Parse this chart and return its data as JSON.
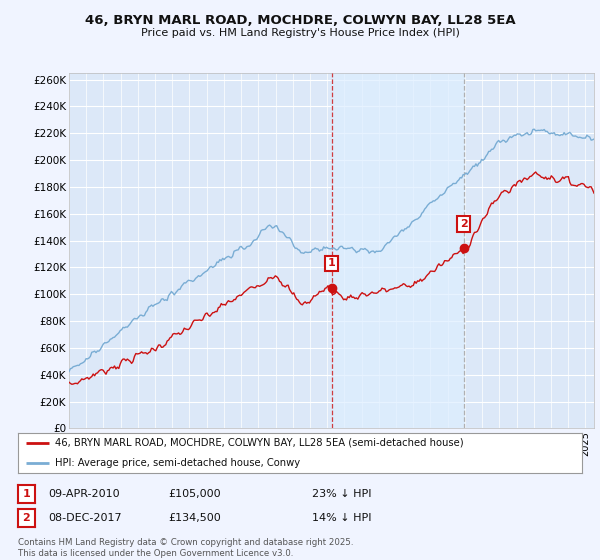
{
  "title": "46, BRYN MARL ROAD, MOCHDRE, COLWYN BAY, LL28 5EA",
  "subtitle": "Price paid vs. HM Land Registry's House Price Index (HPI)",
  "ylim": [
    0,
    265000
  ],
  "yticks": [
    0,
    20000,
    40000,
    60000,
    80000,
    100000,
    120000,
    140000,
    160000,
    180000,
    200000,
    220000,
    240000,
    260000
  ],
  "ytick_labels": [
    "£0",
    "£20K",
    "£40K",
    "£60K",
    "£80K",
    "£100K",
    "£120K",
    "£140K",
    "£160K",
    "£180K",
    "£200K",
    "£220K",
    "£240K",
    "£260K"
  ],
  "background_color": "#f0f4ff",
  "plot_bg_color": "#dce8f8",
  "grid_color": "#ffffff",
  "hpi_color": "#7aadd4",
  "price_color": "#cc1111",
  "vline1_color": "#cc1111",
  "vline2_color": "#aaaaaa",
  "shade_color": "#ddeeff",
  "sale1_date": 2010.27,
  "sale1_price": 105000,
  "sale1_label": "1",
  "sale2_date": 2017.92,
  "sale2_price": 134500,
  "sale2_label": "2",
  "legend_line1": "46, BRYN MARL ROAD, MOCHDRE, COLWYN BAY, LL28 5EA (semi-detached house)",
  "legend_line2": "HPI: Average price, semi-detached house, Conwy",
  "table_row1": [
    "1",
    "09-APR-2010",
    "£105,000",
    "23% ↓ HPI"
  ],
  "table_row2": [
    "2",
    "08-DEC-2017",
    "£134,500",
    "14% ↓ HPI"
  ],
  "footnote": "Contains HM Land Registry data © Crown copyright and database right 2025.\nThis data is licensed under the Open Government Licence v3.0.",
  "xmin": 1995,
  "xmax": 2025.5,
  "fig_width": 6.0,
  "fig_height": 5.6
}
